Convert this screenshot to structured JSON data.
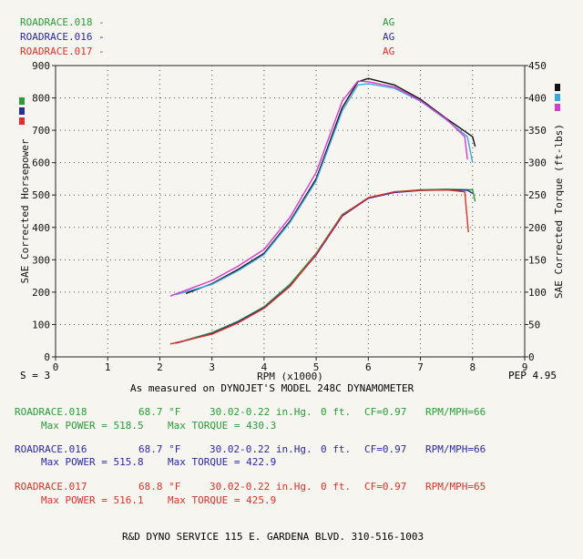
{
  "colors": {
    "green": "#2a9a3a",
    "blue": "#2a2aa0",
    "red": "#d8322a",
    "black": "#111111",
    "cyan": "#3aa7e0",
    "magenta": "#d63bd0"
  },
  "legend_runs": [
    {
      "name": "ROADRACE.018 -",
      "tag": "AG"
    },
    {
      "name": "ROADRACE.016 -",
      "tag": "AG"
    },
    {
      "name": "ROADRACE.017 -",
      "tag": "AG"
    }
  ],
  "footer": {
    "s_label": "S = 3",
    "measured_note": "As measured on DYNOJET'S MODEL 248C DYNAMOMETER",
    "pep": "PEP 4.95",
    "shop": "R&D DYNO SERVICE 115 E. GARDENA BLVD. 310-516-1003"
  },
  "runs": [
    {
      "name": "ROADRACE.018",
      "temp": "68.7 °F",
      "baro": "30.02-0.22 in.Hg.",
      "alt": "0 ft.",
      "cf": "CF=0.97",
      "ratio": "RPM/MPH=66",
      "power_label": "Max POWER = 518.5",
      "torque_label": "Max TORQUE = 430.3"
    },
    {
      "name": "ROADRACE.016",
      "temp": "68.7 °F",
      "baro": "30.02-0.22 in.Hg.",
      "alt": "0 ft.",
      "cf": "CF=0.97",
      "ratio": "RPM/MPH=66",
      "power_label": "Max POWER = 515.8",
      "torque_label": "Max TORQUE = 422.9"
    },
    {
      "name": "ROADRACE.017",
      "temp": "68.8 °F",
      "baro": "30.02-0.22 in.Hg.",
      "alt": "0 ft.",
      "cf": "CF=0.97",
      "ratio": "RPM/MPH=65",
      "power_label": "Max POWER = 516.1",
      "torque_label": "Max TORQUE = 425.9"
    }
  ],
  "chart_data": {
    "type": "line",
    "xlabel": "RPM (x1000)",
    "ylabel": "SAE Corrected Horsepower",
    "y2label": "SAE Corrected Torque (ft-lbs)",
    "xlim": [
      0,
      9
    ],
    "ylim": [
      0,
      900
    ],
    "y2lim": [
      0,
      450
    ],
    "x_ticks": [
      0,
      1,
      2,
      3,
      4,
      5,
      6,
      7,
      8,
      9
    ],
    "y_ticks": [
      0,
      100,
      200,
      300,
      400,
      500,
      600,
      700,
      800,
      900
    ],
    "y2_ticks": [
      0,
      50,
      100,
      150,
      200,
      250,
      300,
      350,
      400,
      450
    ],
    "grid": "dotted",
    "series": [
      {
        "name": "ROADRACE.018",
        "axis": "left",
        "color": "#2a9a3a",
        "x": [
          2.5,
          3.0,
          3.5,
          4.0,
          4.5,
          5.0,
          5.5,
          6.0,
          6.5,
          7.0,
          7.5,
          8.0,
          8.05
        ],
        "y": [
          52,
          75,
          110,
          155,
          225,
          320,
          440,
          490,
          510,
          516,
          518,
          516,
          480
        ]
      },
      {
        "name": "ROADRACE.016",
        "axis": "left",
        "color": "#2a2aa0",
        "x": [
          2.3,
          3.0,
          3.5,
          4.0,
          4.5,
          5.0,
          5.5,
          6.0,
          6.5,
          7.0,
          7.5,
          7.9,
          8.0
        ],
        "y": [
          42,
          72,
          108,
          152,
          220,
          315,
          435,
          490,
          508,
          514,
          516,
          515,
          505
        ]
      },
      {
        "name": "ROADRACE.017",
        "axis": "left",
        "color": "#d8322a",
        "x": [
          2.2,
          3.0,
          3.5,
          4.0,
          4.5,
          5.0,
          5.5,
          6.0,
          6.5,
          7.0,
          7.5,
          7.85,
          7.92
        ],
        "y": [
          40,
          70,
          105,
          150,
          218,
          318,
          438,
          492,
          510,
          515,
          516,
          510,
          385
        ]
      },
      {
        "name": "ROADRACE.018",
        "axis": "right",
        "color": "#111111",
        "x": [
          2.5,
          3.0,
          3.5,
          4.0,
          4.5,
          5.0,
          5.5,
          5.8,
          6.0,
          6.5,
          7.0,
          7.5,
          8.0,
          8.05
        ],
        "y": [
          98,
          113,
          135,
          160,
          210,
          275,
          385,
          425,
          430,
          420,
          398,
          368,
          340,
          325
        ]
      },
      {
        "name": "ROADRACE.016",
        "axis": "right",
        "color": "#3aa7e0",
        "x": [
          2.3,
          3.0,
          3.5,
          4.0,
          4.5,
          5.0,
          5.5,
          5.8,
          6.0,
          6.5,
          7.0,
          7.5,
          7.9,
          8.0
        ],
        "y": [
          96,
          112,
          133,
          158,
          208,
          272,
          380,
          420,
          422,
          415,
          395,
          366,
          340,
          300
        ]
      },
      {
        "name": "ROADRACE.017",
        "axis": "right",
        "color": "#d63bd0",
        "x": [
          2.2,
          3.0,
          3.5,
          4.0,
          4.5,
          5.0,
          5.5,
          5.8,
          6.0,
          6.5,
          7.0,
          7.5,
          7.85,
          7.9
        ],
        "y": [
          94,
          118,
          140,
          166,
          216,
          285,
          395,
          426,
          425,
          417,
          396,
          367,
          340,
          305
        ]
      }
    ]
  }
}
